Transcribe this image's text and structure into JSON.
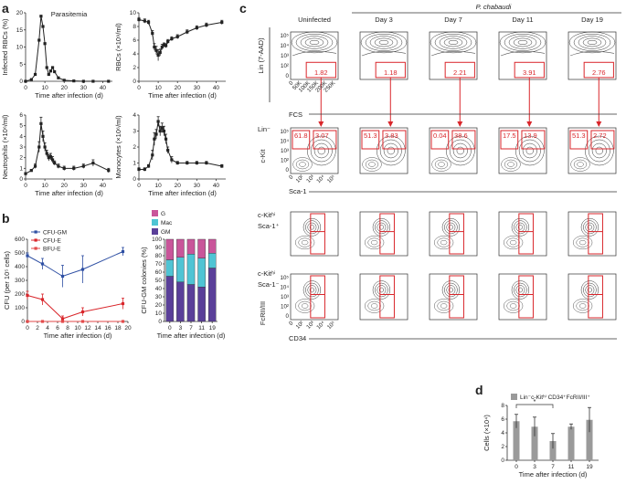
{
  "panel_labels": {
    "a": "a",
    "b": "b",
    "c": "c",
    "d": "d"
  },
  "chart_data": [
    {
      "id": "a1",
      "type": "line",
      "title": "Parasitemia",
      "xlabel": "Time after infection (d)",
      "ylabel": "Infected RBCs (%)",
      "xlim": [
        0,
        45
      ],
      "ylim": [
        0,
        20
      ],
      "xticks": [
        "0",
        "10",
        "20",
        "30",
        "40"
      ],
      "yticks": [
        "0",
        "5",
        "10",
        "15",
        "20"
      ],
      "x": [
        0,
        3,
        5,
        7,
        8,
        9,
        10,
        11,
        12,
        13,
        14,
        15,
        17,
        20,
        25,
        30,
        35,
        43
      ],
      "values": [
        0,
        0.5,
        2,
        12,
        19,
        16,
        11,
        4,
        2,
        3,
        4,
        2.8,
        1,
        0.3,
        0.1,
        0,
        0,
        0
      ]
    },
    {
      "id": "a2",
      "type": "line",
      "title": "",
      "xlabel": "Time after infection (d)",
      "ylabel": "RBCs (×10⁹/ml)",
      "xlim": [
        0,
        45
      ],
      "ylim": [
        0,
        10
      ],
      "xticks": [
        "0",
        "10",
        "20",
        "30",
        "40"
      ],
      "yticks": [
        "0",
        "2",
        "4",
        "6",
        "8",
        "10"
      ],
      "x": [
        0,
        3,
        5,
        7,
        8,
        9,
        10,
        11,
        12,
        13,
        14,
        15,
        17,
        20,
        25,
        30,
        35,
        43
      ],
      "values": [
        9,
        8.8,
        8.6,
        7,
        5,
        4.5,
        3.8,
        4.2,
        5,
        5.3,
        5.2,
        5.8,
        6.2,
        6.5,
        7.2,
        7.8,
        8.2,
        8.6
      ],
      "errors": [
        0.3,
        0.3,
        0.3,
        0.4,
        0.5,
        0.6,
        0.8,
        0.5,
        0.4,
        0.3,
        0.3,
        0.3,
        0.3,
        0.3,
        0.3,
        0.3,
        0.3,
        0.3
      ]
    },
    {
      "id": "a3",
      "type": "line",
      "title": "",
      "xlabel": "Time after infection (d)",
      "ylabel": "Neutrophils (×10⁶/ml)",
      "xlim": [
        0,
        45
      ],
      "ylim": [
        0,
        6
      ],
      "xticks": [
        "0",
        "10",
        "20",
        "30",
        "40"
      ],
      "yticks": [
        "0",
        "1",
        "2",
        "3",
        "4",
        "5",
        "6"
      ],
      "x": [
        0,
        3,
        5,
        7,
        8,
        9,
        10,
        11,
        12,
        13,
        14,
        15,
        17,
        20,
        25,
        30,
        35,
        43
      ],
      "values": [
        0.5,
        0.8,
        1.2,
        3,
        5.2,
        4,
        3,
        2.4,
        2,
        2.1,
        1.8,
        1.5,
        1.2,
        1,
        1,
        1.2,
        1.5,
        0.8
      ],
      "errors": [
        0.1,
        0.1,
        0.2,
        0.5,
        0.6,
        0.5,
        0.4,
        0.3,
        0.3,
        0.3,
        0.3,
        0.2,
        0.2,
        0.2,
        0.2,
        0.2,
        0.3,
        0.2
      ]
    },
    {
      "id": "a4",
      "type": "line",
      "title": "",
      "xlabel": "Time after infection (d)",
      "ylabel": "Monocytes (×10⁶/ml)",
      "xlim": [
        0,
        45
      ],
      "ylim": [
        0,
        4
      ],
      "xticks": [
        "0",
        "10",
        "20",
        "30",
        "40"
      ],
      "yticks": [
        "0",
        "1",
        "2",
        "3",
        "4"
      ],
      "x": [
        0,
        3,
        5,
        7,
        8,
        9,
        10,
        11,
        12,
        13,
        14,
        15,
        17,
        20,
        25,
        30,
        35,
        43
      ],
      "values": [
        0.6,
        0.6,
        0.8,
        1.5,
        2.5,
        2.8,
        3.6,
        3,
        3.2,
        3,
        2.5,
        1.8,
        1.2,
        1,
        1,
        1,
        1,
        0.8
      ],
      "errors": [
        0.1,
        0.1,
        0.1,
        0.3,
        0.4,
        0.3,
        0.3,
        0.3,
        0.3,
        0.3,
        0.3,
        0.2,
        0.2,
        0.1,
        0.1,
        0.1,
        0.1,
        0.1
      ]
    },
    {
      "id": "b1",
      "type": "line",
      "title": "",
      "xlabel": "Time after infection (d)",
      "ylabel": "CFU (per 10⁵ cells)",
      "xlim": [
        0,
        20
      ],
      "ylim": [
        0,
        600
      ],
      "xticks": [
        "0",
        "2",
        "4",
        "6",
        "8",
        "10",
        "12",
        "14",
        "16",
        "18",
        "20"
      ],
      "yticks": [
        "0",
        "100",
        "200",
        "300",
        "400",
        "500",
        "600"
      ],
      "x": [
        0,
        3,
        7,
        11,
        19
      ],
      "series": [
        {
          "name": "CFU-GM",
          "color": "#2e4fa3",
          "values": [
            480,
            420,
            330,
            380,
            510
          ],
          "errors": [
            20,
            40,
            80,
            100,
            30
          ]
        },
        {
          "name": "CFU-E",
          "color": "#d9262b",
          "values": [
            190,
            160,
            20,
            70,
            130
          ],
          "errors": [
            30,
            40,
            20,
            30,
            40
          ]
        },
        {
          "name": "BFU-E",
          "color": "#e34a4a",
          "values": [
            0,
            0,
            0,
            0,
            0
          ],
          "errors": [
            0,
            0,
            0,
            0,
            0
          ]
        }
      ]
    },
    {
      "id": "b2",
      "type": "bar",
      "title": "",
      "xlabel": "Time after infection (d)",
      "ylabel": "CFU-GM colonies (%)",
      "ylim": [
        0,
        100
      ],
      "yticks": [
        "0",
        "10",
        "20",
        "30",
        "40",
        "50",
        "60",
        "70",
        "80",
        "90",
        "100"
      ],
      "categories": [
        "0",
        "3",
        "7",
        "11",
        "19"
      ],
      "series": [
        {
          "name": "GM",
          "color": "#5a3f99",
          "values": [
            55,
            48,
            45,
            42,
            65
          ]
        },
        {
          "name": "Mac",
          "color": "#4fc4d4",
          "values": [
            20,
            30,
            37,
            35,
            18
          ]
        },
        {
          "name": "G",
          "color": "#c9559a",
          "values": [
            25,
            22,
            18,
            23,
            17
          ]
        }
      ]
    },
    {
      "id": "d",
      "type": "bar",
      "title": "",
      "xlabel": "Time after infection (d)",
      "ylabel": "Cells (×10⁴)",
      "ylim": [
        0,
        8
      ],
      "yticks": [
        "0",
        "2",
        "4",
        "6",
        "8"
      ],
      "categories": [
        "0",
        "3",
        "7",
        "11",
        "19"
      ],
      "legend": "Lin⁻c-Kitʰⁱ CD34⁺FcRII/III⁺",
      "significance": "*",
      "series": [
        {
          "name": "Lin⁻c-Kitʰⁱ CD34⁺FcRII/III⁺",
          "color": "#9a9a9a",
          "values": [
            5.7,
            4.9,
            2.8,
            4.9,
            5.9
          ],
          "errors": [
            1,
            1.4,
            1.1,
            0.4,
            1.8
          ]
        }
      ]
    }
  ],
  "flow": {
    "species": "P. chabaudi",
    "columns": [
      "Uninfected",
      "Day 3",
      "Day 7",
      "Day 11",
      "Day 19"
    ],
    "row1": {
      "ylabel": "Lin (7-AAD)",
      "xlabel": "FCS",
      "yticks": [
        "10⁵",
        "10⁴",
        "10³",
        "10²",
        "0"
      ],
      "xticks": [
        "0",
        "50K",
        "100K",
        "150K",
        "200K",
        "250K"
      ],
      "gates": [
        "1.82",
        "1.18",
        "2.21",
        "3.91",
        "2.76"
      ]
    },
    "row2": {
      "label": "Lin⁻",
      "ylabel": "c-Kit",
      "xlabel": "Sca-1",
      "yticks": [
        "10⁵",
        "10⁴",
        "10³",
        "10²",
        "0"
      ],
      "xticks": [
        "0",
        "10²",
        "10³",
        "10⁴",
        "10⁵"
      ],
      "left_gates": [
        "61.8",
        "51.3",
        "0.04",
        "17.5",
        "51.3"
      ],
      "right_gates": [
        "3.07",
        "3.83",
        "38.6",
        "13.9",
        "2.72"
      ]
    },
    "row3": {
      "label_line1": "c-Kitʰⁱ",
      "label_line2": "Sca-1⁺"
    },
    "row4": {
      "label_line1": "c-Kitʰⁱ",
      "label_line2": "Sca-1⁻",
      "ylabel": "FcRII/III",
      "xlabel": "CD34",
      "yticks": [
        "10⁵",
        "10⁴",
        "10³",
        "10²",
        "0"
      ],
      "xticks": [
        "0",
        "10²",
        "10³",
        "10⁴",
        "10⁵"
      ]
    }
  }
}
